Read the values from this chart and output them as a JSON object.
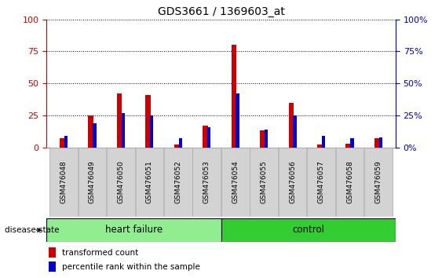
{
  "title": "GDS3661 / 1369603_at",
  "samples": [
    "GSM476048",
    "GSM476049",
    "GSM476050",
    "GSM476051",
    "GSM476052",
    "GSM476053",
    "GSM476054",
    "GSM476055",
    "GSM476056",
    "GSM476057",
    "GSM476058",
    "GSM476059"
  ],
  "transformed_count": [
    7,
    25,
    42,
    41,
    2,
    17,
    80,
    13,
    35,
    2,
    3,
    7
  ],
  "percentile_rank": [
    9,
    19,
    27,
    25,
    7,
    16,
    42,
    14,
    25,
    9,
    7,
    8
  ],
  "bar_color_red": "#cc0000",
  "bar_color_blue": "#0000cc",
  "ylim": [
    0,
    100
  ],
  "yticks": [
    0,
    25,
    50,
    75,
    100
  ],
  "groups": [
    {
      "label": "heart failure",
      "start": 0,
      "end": 6,
      "color": "#90ee90"
    },
    {
      "label": "control",
      "start": 6,
      "end": 12,
      "color": "#33cc33"
    }
  ],
  "disease_state_label": "disease state",
  "legend_items": [
    {
      "label": "transformed count",
      "color": "#cc0000"
    },
    {
      "label": "percentile rank within the sample",
      "color": "#0000cc"
    }
  ],
  "left_yaxis_color": "#cc0000",
  "right_yaxis_color": "#0000cc",
  "tick_bg_color": "#d3d3d3",
  "red_bar_width": 0.18,
  "blue_bar_width": 0.12
}
